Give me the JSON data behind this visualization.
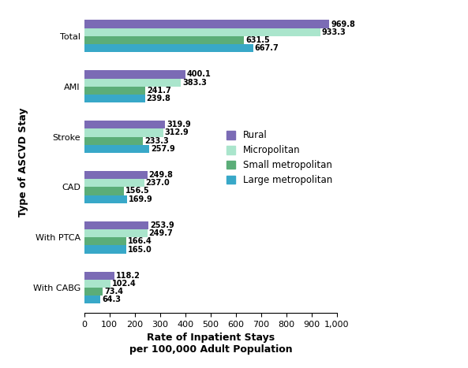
{
  "categories": [
    "Total",
    "AMI",
    "Stroke",
    "CAD",
    "With PTCA",
    "With CABG"
  ],
  "series": {
    "Rural": [
      969.8,
      400.1,
      319.9,
      249.8,
      253.9,
      118.2
    ],
    "Micropolitan": [
      933.3,
      383.3,
      312.9,
      237.0,
      249.7,
      102.4
    ],
    "Small metropolitan": [
      631.5,
      241.7,
      233.3,
      156.5,
      166.4,
      73.4
    ],
    "Large metropolitan": [
      667.7,
      239.8,
      257.9,
      169.9,
      165.0,
      64.3
    ]
  },
  "colors": {
    "Rural": "#7B6BB5",
    "Micropolitan": "#AAE5CC",
    "Small metropolitan": "#5BAD78",
    "Large metropolitan": "#38A8C8"
  },
  "legend_order": [
    "Rural",
    "Micropolitan",
    "Small metropolitan",
    "Large metropolitan"
  ],
  "xlabel": "Rate of Inpatient Stays\nper 100,000 Adult Population",
  "ylabel": "Type of ASCVD Stay",
  "xlim": [
    0,
    1000
  ],
  "xticks": [
    0,
    100,
    200,
    300,
    400,
    500,
    600,
    700,
    800,
    900,
    1000
  ],
  "xtick_labels": [
    "0",
    "100",
    "200",
    "300",
    "400",
    "500",
    "600",
    "700",
    "800",
    "900",
    "1,000"
  ],
  "bar_height": 0.16,
  "figsize": [
    5.93,
    4.67
  ],
  "dpi": 100,
  "label_fontsize": 7.0,
  "tick_fontsize": 8.0,
  "axis_label_fontsize": 9,
  "legend_fontsize": 8.5
}
